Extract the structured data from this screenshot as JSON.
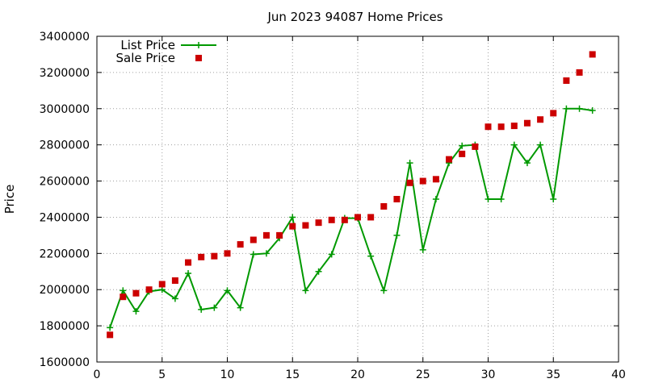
{
  "chart_data": {
    "type": "line",
    "title": "Jun 2023 94087 Home Prices",
    "xlabel": "",
    "ylabel": "Price",
    "xlim": [
      0,
      40
    ],
    "ylim": [
      1600000,
      3400000
    ],
    "xticks": [
      0,
      5,
      10,
      15,
      20,
      25,
      30,
      35,
      40
    ],
    "yticks": [
      1600000,
      1800000,
      2000000,
      2200000,
      2400000,
      2600000,
      2800000,
      3000000,
      3200000,
      3400000
    ],
    "grid": true,
    "legend_position": "top-left",
    "series": [
      {
        "name": "List Price",
        "style": "line-with-plus-markers",
        "color": "#009900",
        "x": [
          1,
          2,
          3,
          4,
          5,
          6,
          7,
          8,
          9,
          10,
          11,
          12,
          13,
          14,
          15,
          16,
          17,
          18,
          19,
          20,
          21,
          22,
          23,
          24,
          25,
          26,
          27,
          28,
          29,
          30,
          31,
          32,
          33,
          34,
          35,
          36,
          37,
          38
        ],
        "y": [
          1790000,
          1995000,
          1880000,
          1990000,
          2000000,
          1950000,
          2090000,
          1890000,
          1900000,
          1995000,
          1900000,
          2195000,
          2200000,
          2285000,
          2400000,
          1995000,
          2100000,
          2195000,
          2395000,
          2395000,
          2185000,
          1995000,
          2300000,
          2700000,
          2220000,
          2500000,
          2700000,
          2795000,
          2800000,
          2500000,
          2500000,
          2800000,
          2700000,
          2800000,
          2500000,
          3000000,
          3000000,
          2990000
        ]
      },
      {
        "name": "Sale Price",
        "style": "square-markers",
        "color": "#cc0000",
        "x": [
          1,
          2,
          3,
          4,
          5,
          6,
          7,
          8,
          9,
          10,
          11,
          12,
          13,
          14,
          15,
          16,
          17,
          18,
          19,
          20,
          21,
          22,
          23,
          24,
          25,
          26,
          27,
          28,
          29,
          30,
          31,
          32,
          33,
          34,
          35,
          36,
          37,
          38
        ],
        "y": [
          1750000,
          1960000,
          1980000,
          2000000,
          2030000,
          2050000,
          2150000,
          2180000,
          2185000,
          2200000,
          2250000,
          2275000,
          2300000,
          2300000,
          2350000,
          2355000,
          2370000,
          2385000,
          2385000,
          2400000,
          2400000,
          2460000,
          2500000,
          2590000,
          2600000,
          2610000,
          2720000,
          2750000,
          2790000,
          2900000,
          2900000,
          2905000,
          2920000,
          2940000,
          2975000,
          3155000,
          3200000,
          3300000
        ]
      }
    ]
  }
}
